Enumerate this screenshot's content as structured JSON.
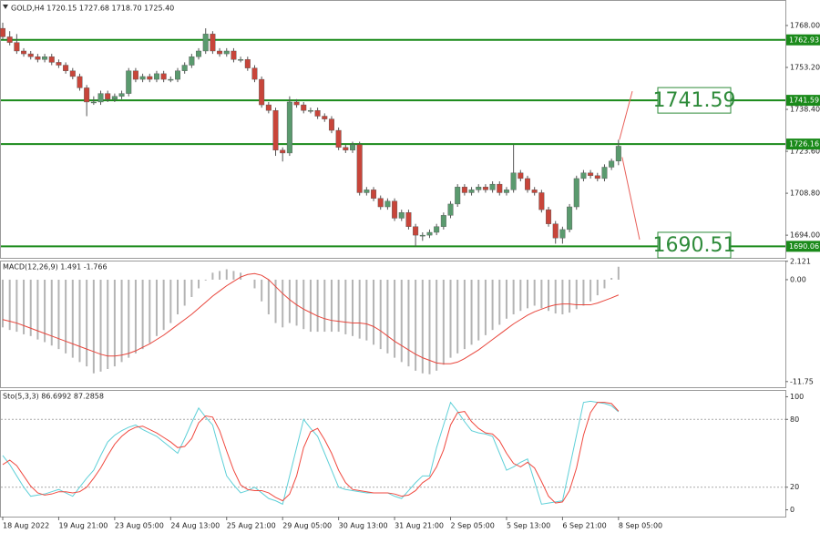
{
  "chart_data": [
    {
      "type": "candlestick",
      "title": "GOLD,H4  1720.15 1727.68 1718.70 1725.40",
      "categories": [
        "18 Aug 2022",
        null,
        null,
        null,
        null,
        null,
        null,
        null,
        "19 Aug 21:00",
        null,
        null,
        null,
        null,
        null,
        null,
        null,
        "23 Aug 05:00",
        null,
        null,
        null,
        null,
        null,
        null,
        null,
        "24 Aug 13:00",
        null,
        null,
        null,
        null,
        null,
        null,
        null,
        "25 Aug 21:00",
        null,
        null,
        null,
        null,
        null,
        null,
        null,
        "29 Aug 05:00",
        null,
        null,
        null,
        null,
        null,
        null,
        null,
        "30 Aug 13:00",
        null,
        null,
        null,
        null,
        null,
        null,
        null,
        "31 Aug 21:00",
        null,
        null,
        null,
        null,
        null,
        null,
        null,
        "2 Sep 05:00",
        null,
        null,
        null,
        null,
        null,
        null,
        null,
        "5 Sep 13:00",
        null,
        null,
        null,
        null,
        null,
        null,
        null,
        "6 Sep 21:00",
        null,
        null,
        null,
        null,
        null,
        null,
        null,
        "8 Sep 05:00"
      ],
      "open": [
        1767,
        1764,
        1762,
        1759,
        1758,
        1757,
        1756,
        1757,
        1755,
        1754,
        1752,
        1750,
        1746,
        1741,
        1741,
        1744,
        1742,
        1743,
        1744,
        1752,
        1749,
        1750,
        1749,
        1751,
        1749,
        1749,
        1752,
        1754,
        1757,
        1759,
        1765,
        1759,
        1758,
        1759,
        1756,
        1756,
        1753,
        1749,
        1740,
        1738,
        1724,
        1723,
        1741,
        1740,
        1738,
        1738,
        1736,
        1735,
        1731,
        1725,
        1724,
        1726,
        1709,
        1710,
        1707,
        1704,
        1706,
        1700,
        1702,
        1697,
        1694,
        1694,
        1695,
        1697,
        1701,
        1705,
        1711,
        1709,
        1710,
        1711,
        1710,
        1712,
        1709,
        1710,
        1716,
        1714,
        1710,
        1709,
        1703,
        1698,
        1693,
        1696,
        1704,
        1714,
        1716,
        1715,
        1714,
        1718,
        1720.15
      ],
      "high": [
        1769,
        1766,
        1765,
        1760,
        1759,
        1758,
        1758,
        1758,
        1756,
        1755,
        1753,
        1751,
        1747,
        1743,
        1745,
        1745,
        1744,
        1745,
        1753,
        1753,
        1751,
        1751,
        1752,
        1752,
        1750,
        1753,
        1755,
        1758,
        1760,
        1767,
        1766,
        1760,
        1760,
        1760,
        1757,
        1757,
        1754,
        1750,
        1741,
        1739,
        1725,
        1743,
        1742,
        1741,
        1739,
        1739,
        1737,
        1736,
        1732,
        1726,
        1727,
        1727,
        1711,
        1711,
        1708,
        1707,
        1707,
        1703,
        1703,
        1698,
        1695,
        1696,
        1698,
        1702,
        1706,
        1712,
        1712,
        1711,
        1712,
        1712,
        1713,
        1713,
        1711,
        1726,
        1717,
        1715,
        1711,
        1710,
        1704,
        1699,
        1697,
        1705,
        1715,
        1717,
        1717,
        1716,
        1719,
        1721,
        1727.68
      ],
      "low": [
        1763,
        1761,
        1758,
        1757,
        1756,
        1755,
        1755,
        1754,
        1753,
        1751,
        1749,
        1745,
        1736,
        1740,
        1740,
        1741,
        1741,
        1742,
        1743,
        1748,
        1748,
        1748,
        1748,
        1748,
        1748,
        1748,
        1751,
        1753,
        1756,
        1758,
        1758,
        1757,
        1757,
        1755,
        1755,
        1752,
        1748,
        1739,
        1737,
        1722,
        1720,
        1722,
        1739,
        1737,
        1737,
        1735,
        1734,
        1730,
        1724,
        1723,
        1723,
        1708,
        1708,
        1706,
        1703,
        1703,
        1699,
        1699,
        1696,
        1690,
        1692,
        1693,
        1694,
        1696,
        1700,
        1704,
        1708,
        1708,
        1709,
        1709,
        1709,
        1708,
        1708,
        1709,
        1713,
        1709,
        1708,
        1702,
        1697,
        1691,
        1691,
        1695,
        1703,
        1713,
        1714,
        1713,
        1713,
        1717,
        1718.7
      ],
      "close": [
        1764,
        1762,
        1759,
        1758,
        1757,
        1756,
        1757,
        1755,
        1754,
        1752,
        1750,
        1746,
        1741,
        1741,
        1744,
        1742,
        1743,
        1744,
        1752,
        1749,
        1750,
        1749,
        1751,
        1749,
        1749,
        1752,
        1754,
        1757,
        1759,
        1765,
        1759,
        1758,
        1759,
        1756,
        1756,
        1753,
        1749,
        1740,
        1738,
        1724,
        1723,
        1741,
        1740,
        1738,
        1738,
        1736,
        1735,
        1731,
        1725,
        1724,
        1726,
        1709,
        1710,
        1707,
        1704,
        1706,
        1700,
        1702,
        1697,
        1694,
        1694,
        1695,
        1697,
        1701,
        1705,
        1711,
        1709,
        1710,
        1711,
        1710,
        1712,
        1709,
        1710,
        1716,
        1714,
        1710,
        1709,
        1703,
        1698,
        1693,
        1696,
        1704,
        1714,
        1716,
        1715,
        1714,
        1718,
        1720.15,
        1725.4
      ],
      "up_color": "#5a9a6e",
      "down_color": "#c8453a",
      "ylim": [
        1686,
        1777
      ],
      "yticks": [
        {
          "value": 1768,
          "label": "1768.00"
        },
        {
          "value": 1753.2,
          "label": "1753.20"
        },
        {
          "value": 1738.4,
          "label": "1738.40"
        },
        {
          "value": 1723.6,
          "label": "1723.60"
        },
        {
          "value": 1708.8,
          "label": "1708.80"
        },
        {
          "value": 1694,
          "label": "1694.00"
        }
      ],
      "levels": [
        1762.93,
        1741.59,
        1726.16,
        1690.06
      ],
      "level_color": "#1a8a1a",
      "targets": [
        1741.59,
        1690.51
      ],
      "target_color": "#2e8b3a",
      "projection_color": "#e8605a"
    },
    {
      "type": "macd",
      "title": "MACD(12,26,9) 1.491 -1.766",
      "values": [
        -5.5,
        -5.8,
        -6.0,
        -6.3,
        -6.5,
        -6.9,
        -7.2,
        -7.6,
        -8.0,
        -8.5,
        -9.0,
        -9.5,
        -10.0,
        -10.8,
        -10.6,
        -10.3,
        -10.0,
        -9.5,
        -9.0,
        -8.5,
        -8.0,
        -7.3,
        -6.5,
        -5.8,
        -5.0,
        -4.0,
        -3.0,
        -2.0,
        -1.0,
        -0.1,
        0.8,
        1.0,
        1.2,
        1.0,
        0.8,
        0.0,
        -1.0,
        -2.5,
        -4.0,
        -5.0,
        -5.5,
        -5.0,
        -5.3,
        -5.7,
        -6.0,
        -6.0,
        -6.0,
        -6.0,
        -6.0,
        -6.3,
        -6.5,
        -6.8,
        -7.0,
        -7.5,
        -8.0,
        -8.5,
        -9.0,
        -9.5,
        -10.0,
        -10.5,
        -10.8,
        -10.9,
        -10.5,
        -9.8,
        -9.0,
        -8.5,
        -8.0,
        -7.5,
        -7.0,
        -6.4,
        -5.8,
        -5.2,
        -4.5,
        -4.0,
        -3.6,
        -3.3,
        -3.0,
        -3.3,
        -3.6,
        -3.9,
        -4.0,
        -3.8,
        -3.4,
        -3.0,
        -2.5,
        -1.8,
        -1.0,
        0.2,
        1.491
      ],
      "color": "#b4b4b4",
      "signal": [
        -4.6,
        -4.8,
        -5.0,
        -5.3,
        -5.6,
        -5.9,
        -6.2,
        -6.5,
        -6.8,
        -7.1,
        -7.4,
        -7.7,
        -8.0,
        -8.3,
        -8.6,
        -8.8,
        -8.8,
        -8.7,
        -8.5,
        -8.2,
        -7.8,
        -7.4,
        -6.9,
        -6.4,
        -5.8,
        -5.2,
        -4.6,
        -4.0,
        -3.3,
        -2.6,
        -1.9,
        -1.3,
        -0.7,
        -0.2,
        0.3,
        0.6,
        0.7,
        0.5,
        0.0,
        -0.8,
        -1.6,
        -2.3,
        -2.9,
        -3.4,
        -3.8,
        -4.2,
        -4.5,
        -4.7,
        -4.8,
        -4.9,
        -5.0,
        -5.0,
        -5.1,
        -5.4,
        -5.9,
        -6.5,
        -7.1,
        -7.6,
        -8.1,
        -8.6,
        -9.0,
        -9.3,
        -9.6,
        -9.7,
        -9.7,
        -9.5,
        -9.1,
        -8.6,
        -8.1,
        -7.5,
        -6.9,
        -6.3,
        -5.7,
        -5.1,
        -4.6,
        -4.1,
        -3.7,
        -3.4,
        -3.1,
        -2.9,
        -2.8,
        -2.8,
        -2.9,
        -2.9,
        -2.9,
        -2.7,
        -2.4,
        -2.1,
        -1.766
      ],
      "signal_color": "#e8463c",
      "ylim": [
        -12.4,
        2.2
      ],
      "yticks": [
        2.121,
        {
          "value": 0,
          "label": "0.00"
        },
        -11.75
      ]
    },
    {
      "type": "stochastic",
      "title": "Sto(5,3,3) 86.6992 87.2858",
      "k": [
        48,
        40,
        30,
        20,
        12,
        13,
        14,
        16,
        18,
        15,
        12,
        20,
        28,
        35,
        48,
        60,
        66,
        70,
        73,
        75,
        71,
        68,
        65,
        60,
        55,
        50,
        63,
        77,
        90,
        82,
        75,
        52,
        30,
        22,
        15,
        17,
        20,
        15,
        10,
        8,
        5,
        30,
        55,
        80,
        72,
        65,
        50,
        35,
        20,
        18,
        17,
        16,
        15,
        15,
        15,
        15,
        12,
        10,
        17,
        24,
        30,
        30,
        55,
        75,
        95,
        87,
        78,
        70,
        68,
        67,
        65,
        50,
        35,
        38,
        42,
        45,
        25,
        5,
        6,
        7,
        8,
        37,
        66,
        95,
        96,
        95,
        94,
        92,
        86.6992
      ],
      "k_color": "#5fd0d8",
      "d": [
        40,
        44,
        39,
        30,
        21,
        15,
        13,
        14,
        16,
        16,
        15,
        16,
        20,
        28,
        37,
        48,
        58,
        65,
        70,
        73,
        74,
        71,
        68,
        64,
        60,
        55,
        56,
        63,
        77,
        83,
        82,
        70,
        52,
        35,
        22,
        18,
        17,
        17,
        15,
        11,
        8,
        14,
        30,
        55,
        69,
        72,
        62,
        50,
        35,
        24,
        18,
        17,
        16,
        15,
        15,
        15,
        14,
        12,
        13,
        17,
        24,
        28,
        38,
        53,
        75,
        86,
        87,
        78,
        72,
        68,
        67,
        61,
        50,
        41,
        38,
        42,
        37,
        25,
        12,
        6,
        7,
        17,
        37,
        66,
        86,
        95,
        95,
        94,
        87.2858
      ],
      "d_color": "#f04a40",
      "ylim": [
        -6,
        106
      ],
      "yticks": [
        100,
        80,
        20,
        0
      ],
      "levels": [
        80,
        20
      ]
    }
  ]
}
